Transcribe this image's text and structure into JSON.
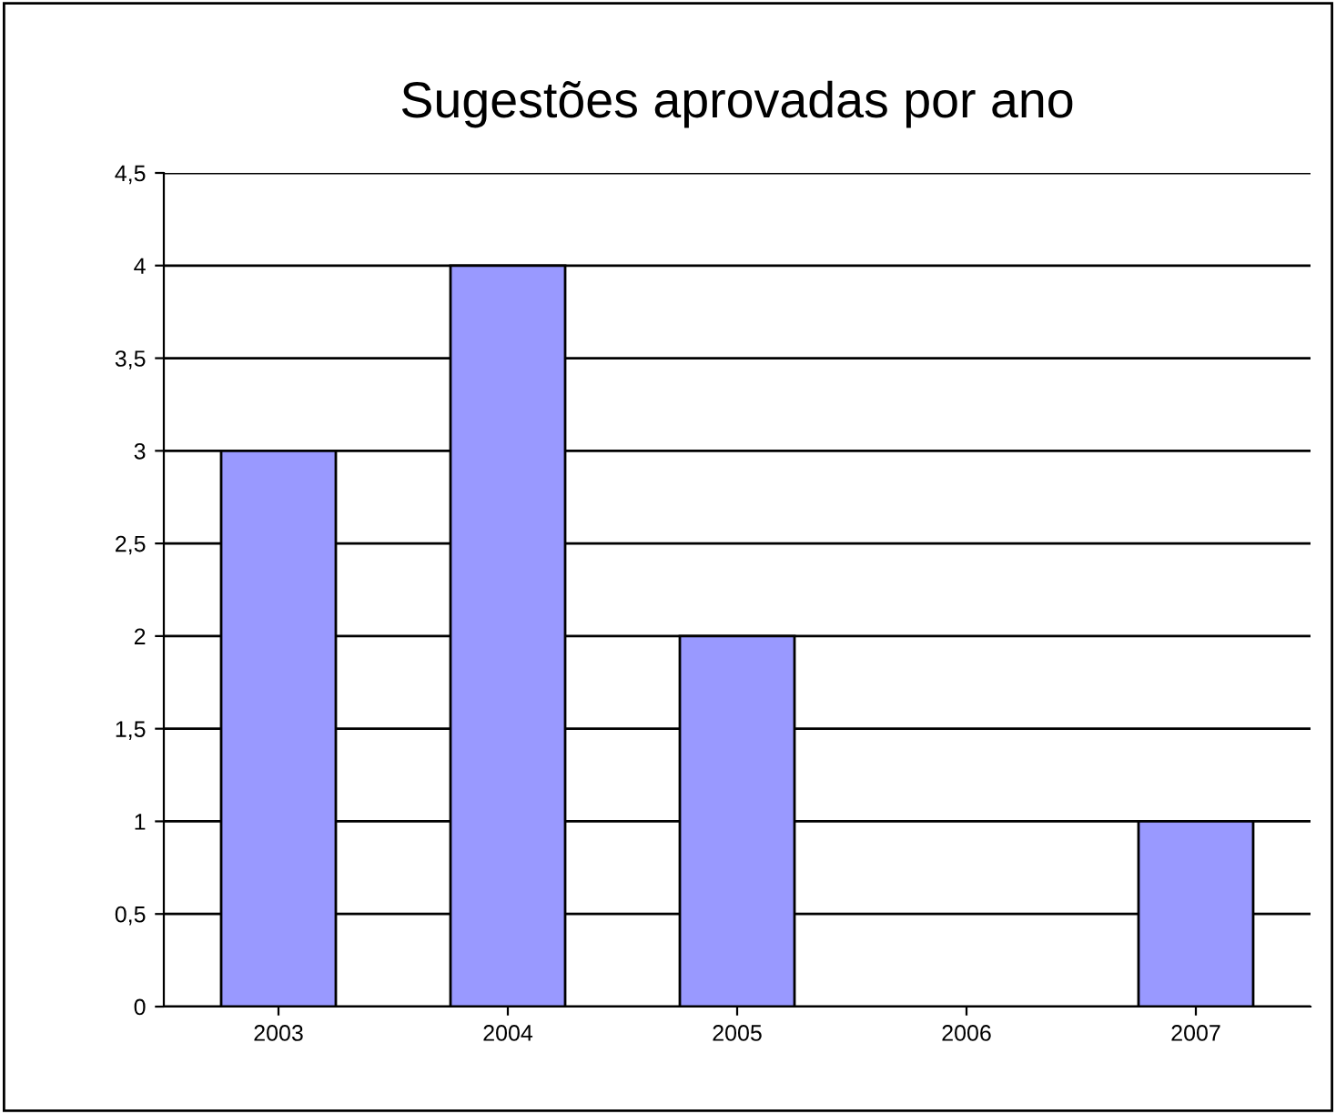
{
  "chart_data": {
    "type": "bar",
    "title": "Sugestões aprovadas por ano",
    "categories": [
      "2003",
      "2004",
      "2005",
      "2006",
      "2007"
    ],
    "values": [
      3,
      4,
      2,
      0,
      1
    ],
    "color": "#9999ff",
    "ylim": [
      0,
      4.5
    ],
    "yticks": [
      0,
      {
        "value": 0.5,
        "label": "0,5"
      },
      1,
      {
        "value": 1.5,
        "label": "1,5"
      },
      2,
      {
        "value": 2.5,
        "label": "2,5"
      },
      3,
      {
        "value": 3.5,
        "label": "3,5"
      },
      4,
      {
        "value": 4.5,
        "label": "4,5"
      }
    ],
    "grid": "y",
    "legend": false
  }
}
